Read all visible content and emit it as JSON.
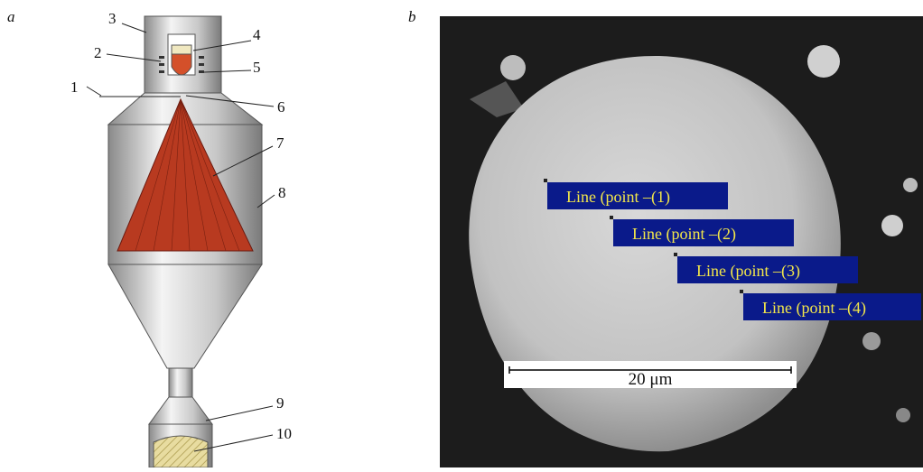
{
  "panel_a": {
    "letter": "a",
    "labels": [
      "1",
      "2",
      "3",
      "4",
      "5",
      "6",
      "7",
      "8",
      "9",
      "10"
    ]
  },
  "panel_b": {
    "letter": "b",
    "points": [
      "Line (point –(1)",
      "Line (point –(2)",
      "Line (point –(3)",
      "Line (point –(4)"
    ],
    "scale_bar": "20 μm"
  }
}
